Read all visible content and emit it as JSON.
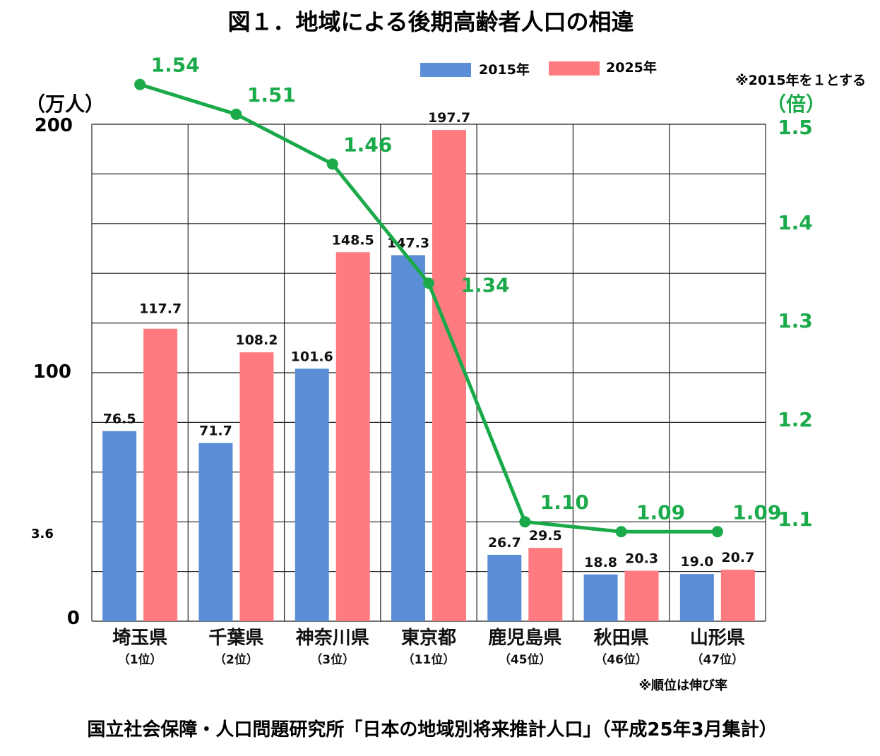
{
  "title": "図１．地域による後期高齢者人口の相違",
  "legend": {
    "s1": "2015年",
    "s2": "2025年",
    "s1_color": "#5b8ed6",
    "s2_color": "#ff7b80"
  },
  "left_axis": {
    "unit": "（万人）",
    "ticks": [
      "200",
      "100",
      "0"
    ],
    "stray": "3.6"
  },
  "right_axis": {
    "unit": "（倍）",
    "note": "※2015年を１とする",
    "ticks": [
      "1.5",
      "1.4",
      "1.3",
      "1.2",
      "1.1"
    ]
  },
  "categories": [
    {
      "name": "埼玉県",
      "rank": "（1位）"
    },
    {
      "name": "千葉県",
      "rank": "（2位）"
    },
    {
      "name": "神奈川県",
      "rank": "（3位）"
    },
    {
      "name": "東京都",
      "rank": "（11位）"
    },
    {
      "name": "鹿児島県",
      "rank": "（45位）"
    },
    {
      "name": "秋田県",
      "rank": "（46位）"
    },
    {
      "name": "山形県",
      "rank": "（47位）"
    }
  ],
  "rank_note": "※順位は伸び率",
  "source": "国立社会保障・人口問題研究所「日本の地域別将来推計人口」（平成25年3月集計）",
  "line_color": "#1aaa4a",
  "chart_data": {
    "type": "bar",
    "categories": [
      "埼玉県",
      "千葉県",
      "神奈川県",
      "東京都",
      "鹿児島県",
      "秋田県",
      "山形県"
    ],
    "series": [
      {
        "name": "2015年",
        "values": [
          76.5,
          71.7,
          101.6,
          147.3,
          26.7,
          18.8,
          19.0
        ],
        "labels": [
          "76.5",
          "71.7",
          "101.6",
          "147.3",
          "26.7",
          "18.8",
          "19.0"
        ]
      },
      {
        "name": "2025年",
        "values": [
          117.7,
          108.2,
          148.5,
          197.7,
          29.5,
          20.3,
          20.7
        ],
        "labels": [
          "117.7",
          "108.2",
          "148.5",
          "197.7",
          "29.5",
          "20.3",
          "20.7"
        ]
      }
    ],
    "ratio_line": {
      "values": [
        1.54,
        1.51,
        1.46,
        1.34,
        1.1,
        1.09,
        1.09
      ],
      "labels": [
        "1.54",
        "1.51",
        "1.46",
        "1.34",
        "1.10",
        "1.09",
        "1.09"
      ]
    },
    "ylim": [
      0,
      200
    ],
    "ylim_right": [
      1.0,
      1.5
    ],
    "grid": true
  }
}
